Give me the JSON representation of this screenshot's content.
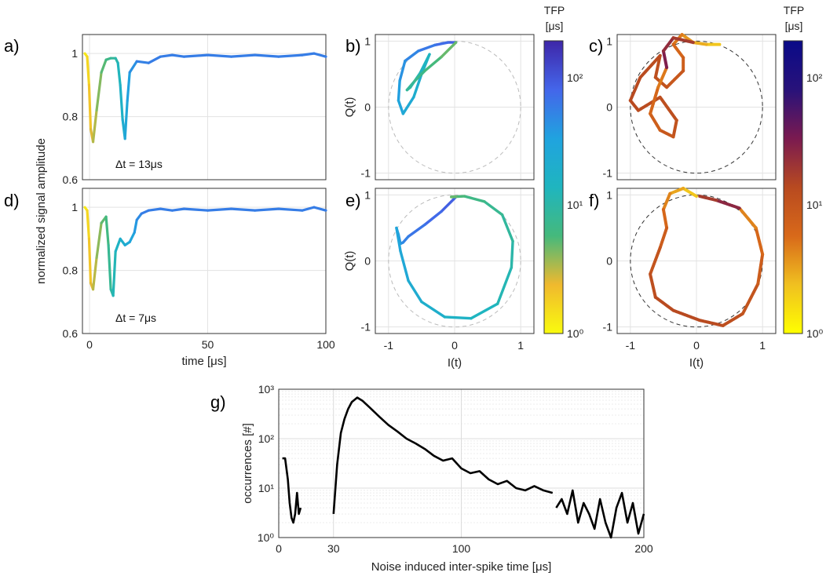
{
  "panel_labels": [
    "a)",
    "b)",
    "c)",
    "d)",
    "e)",
    "f)",
    "g)"
  ],
  "colorbar": {
    "title_line1": "TFP",
    "title_line2": "[μs]",
    "tick_labels": [
      "10⁰",
      "10¹",
      "10²"
    ]
  },
  "colors": {
    "parula": [
      "#f9fb0e",
      "#f0b92e",
      "#45b97c",
      "#1fb5bf",
      "#20a3df",
      "#4466ea",
      "#3e26a8"
    ],
    "hot": [
      "#ffff00",
      "#f0c020",
      "#d8691a",
      "#b84a20",
      "#7a1a50",
      "#28127a",
      "#0a0a88"
    ]
  },
  "chart_data": [
    {
      "panel": "a",
      "type": "line",
      "ylabel": "normalized signal amplitude",
      "xlim": [
        -3,
        100
      ],
      "ylim": [
        0.6,
        1.06
      ],
      "yticks": [
        0.6,
        0.8,
        1
      ],
      "ytick_labels": [
        "0.6",
        "0.8",
        "1"
      ],
      "xticks": [
        0,
        50,
        100
      ],
      "xtick_labels": [],
      "annotation": "Δt = 13μs",
      "x": [
        -2,
        -1,
        -0.2,
        0.5,
        1.5,
        3,
        5,
        7,
        9,
        11,
        12,
        13,
        14,
        15,
        16,
        17,
        20,
        25,
        30,
        35,
        40,
        50,
        60,
        70,
        80,
        90,
        95,
        100
      ],
      "y": [
        1.0,
        0.99,
        0.9,
        0.76,
        0.72,
        0.82,
        0.94,
        0.98,
        0.985,
        0.985,
        0.97,
        0.9,
        0.79,
        0.73,
        0.85,
        0.94,
        0.975,
        0.97,
        0.99,
        0.995,
        0.99,
        0.995,
        0.99,
        0.995,
        0.99,
        0.995,
        1.0,
        0.99
      ]
    },
    {
      "panel": "d",
      "type": "line",
      "ylabel": "",
      "xlim": [
        -3,
        100
      ],
      "ylim": [
        0.6,
        1.06
      ],
      "yticks": [
        0.6,
        0.8,
        1
      ],
      "ytick_labels": [
        "0.6",
        "0.8",
        "1"
      ],
      "xticks": [
        0,
        50,
        100
      ],
      "xtick_labels": [
        "0",
        "50",
        "100"
      ],
      "xlabel": "time [μs]",
      "annotation": "Δt = 7μs",
      "x": [
        -2,
        -1,
        -0.2,
        0.5,
        1.5,
        3,
        5,
        7,
        8,
        9,
        10,
        11,
        13,
        15,
        17,
        19,
        20,
        22,
        25,
        30,
        35,
        40,
        50,
        60,
        70,
        80,
        90,
        95,
        100
      ],
      "y": [
        1.0,
        0.99,
        0.9,
        0.76,
        0.74,
        0.84,
        0.95,
        0.97,
        0.88,
        0.74,
        0.72,
        0.86,
        0.9,
        0.88,
        0.89,
        0.92,
        0.96,
        0.98,
        0.99,
        0.995,
        0.99,
        0.995,
        0.99,
        0.995,
        0.99,
        0.995,
        0.99,
        1.0,
        0.99
      ]
    },
    {
      "panel": "b",
      "type": "line",
      "xlim": [
        -1.2,
        1.2
      ],
      "ylim": [
        -1.1,
        1.1
      ],
      "ylabel": "Q(t)",
      "xtick_labels": [],
      "ytick_labels": [
        "-1",
        "0",
        "1"
      ],
      "x": [
        0.02,
        -0.1,
        -0.3,
        -0.55,
        -0.75,
        -0.83,
        -0.85,
        -0.78,
        -0.62,
        -0.5,
        -0.38,
        -0.52,
        -0.67,
        -0.72,
        -0.6,
        -0.45,
        -0.2,
        0.02
      ],
      "y": [
        0.98,
        0.98,
        0.94,
        0.85,
        0.7,
        0.4,
        0.1,
        -0.1,
        0.15,
        0.5,
        0.8,
        0.52,
        0.3,
        0.26,
        0.4,
        0.55,
        0.76,
        0.98
      ]
    },
    {
      "panel": "e",
      "type": "line",
      "xlim": [
        -1.2,
        1.2
      ],
      "ylim": [
        -1.1,
        1.1
      ],
      "ylabel": "Q(t)",
      "xlabel": "I(t)",
      "xtick_labels": [
        "-1",
        "0",
        "1"
      ],
      "ytick_labels": [
        "-1",
        "0",
        "1"
      ],
      "x": [
        0.02,
        -0.2,
        -0.45,
        -0.7,
        -0.78,
        -0.82,
        -0.85,
        -0.88,
        -0.82,
        -0.7,
        -0.5,
        -0.15,
        0.25,
        0.65,
        0.86,
        0.88,
        0.72,
        0.45,
        0.15,
        -0.05,
        0.02
      ],
      "y": [
        0.97,
        0.75,
        0.55,
        0.37,
        0.28,
        0.26,
        0.4,
        0.5,
        0.15,
        -0.3,
        -0.62,
        -0.85,
        -0.87,
        -0.65,
        -0.1,
        0.3,
        0.7,
        0.9,
        0.98,
        0.97,
        0.97
      ]
    },
    {
      "panel": "c",
      "type": "line",
      "xlim": [
        -1.2,
        1.2
      ],
      "ylim": [
        -1.1,
        1.1
      ],
      "xtick_labels": [],
      "ytick_labels": [
        "-1",
        "0",
        "1"
      ],
      "x": [
        0.35,
        0.15,
        -0.05,
        -0.22,
        -0.35,
        -0.2,
        -0.2,
        -0.45,
        -0.62,
        -0.55,
        -0.85,
        -1.0,
        -0.88,
        -0.55,
        -0.3,
        -0.35,
        -0.55,
        -0.7,
        -0.58,
        -0.45,
        -0.5,
        -0.35,
        -0.05
      ],
      "y": [
        0.95,
        0.95,
        0.98,
        1.1,
        0.95,
        0.75,
        0.55,
        0.3,
        0.45,
        0.78,
        0.45,
        0.1,
        -0.05,
        0.15,
        -0.2,
        -0.45,
        -0.35,
        -0.1,
        0.3,
        0.6,
        0.85,
        1.05,
        0.98
      ]
    },
    {
      "panel": "f",
      "type": "line",
      "xlim": [
        -1.2,
        1.2
      ],
      "ylim": [
        -1.1,
        1.1
      ],
      "xlabel": "I(t)",
      "xtick_labels": [
        "-1",
        "0",
        "1"
      ],
      "ytick_labels": [
        "-1",
        "0",
        "1"
      ],
      "x": [
        0.0,
        -0.2,
        -0.4,
        -0.5,
        -0.45,
        -0.55,
        -0.7,
        -0.62,
        -0.35,
        0.05,
        0.4,
        0.7,
        0.93,
        1.0,
        0.9,
        0.65,
        0.3,
        0.05
      ],
      "y": [
        0.98,
        1.1,
        1.02,
        0.78,
        0.5,
        0.2,
        -0.2,
        -0.55,
        -0.75,
        -0.9,
        -0.98,
        -0.8,
        -0.35,
        0.1,
        0.5,
        0.8,
        0.92,
        0.98
      ]
    },
    {
      "panel": "g",
      "type": "line",
      "xlabel": "Noise induced inter-spike time [μs]",
      "ylabel": "occurrences [#]",
      "xlim": [
        0,
        200
      ],
      "ylim": [
        1,
        1000
      ],
      "yscale": "log",
      "xticks": [
        0,
        30,
        100,
        200
      ],
      "xtick_labels": [
        "0",
        "30",
        "100",
        "200"
      ],
      "ytick_labels": [
        "10⁰",
        "10¹",
        "10²",
        "10³"
      ],
      "segments": [
        {
          "x": [
            2,
            3.5,
            5,
            6,
            7,
            8,
            9,
            10,
            11,
            12
          ],
          "y": [
            40,
            40,
            15,
            5,
            2.5,
            2,
            3,
            8,
            3,
            4
          ]
        },
        {
          "x": [
            30,
            32,
            34,
            36,
            38,
            40,
            43,
            46,
            50,
            55,
            60,
            65,
            70,
            75,
            80,
            85,
            90,
            95,
            100,
            105,
            110,
            115,
            120,
            125,
            130,
            135,
            140,
            145,
            150
          ],
          "y": [
            3,
            30,
            130,
            250,
            400,
            550,
            680,
            580,
            420,
            280,
            190,
            140,
            100,
            80,
            62,
            45,
            36,
            40,
            25,
            20,
            22,
            15,
            12,
            14,
            10,
            9,
            11,
            9,
            8
          ]
        },
        {
          "x": [
            152,
            155,
            158,
            161,
            164,
            167,
            170,
            173,
            176,
            179,
            182,
            185,
            188,
            191,
            194,
            197,
            200
          ],
          "y": [
            4,
            6,
            3,
            9,
            2,
            5,
            3,
            1.5,
            6,
            2,
            1,
            4,
            8,
            2,
            5,
            1.2,
            3
          ]
        }
      ]
    }
  ]
}
